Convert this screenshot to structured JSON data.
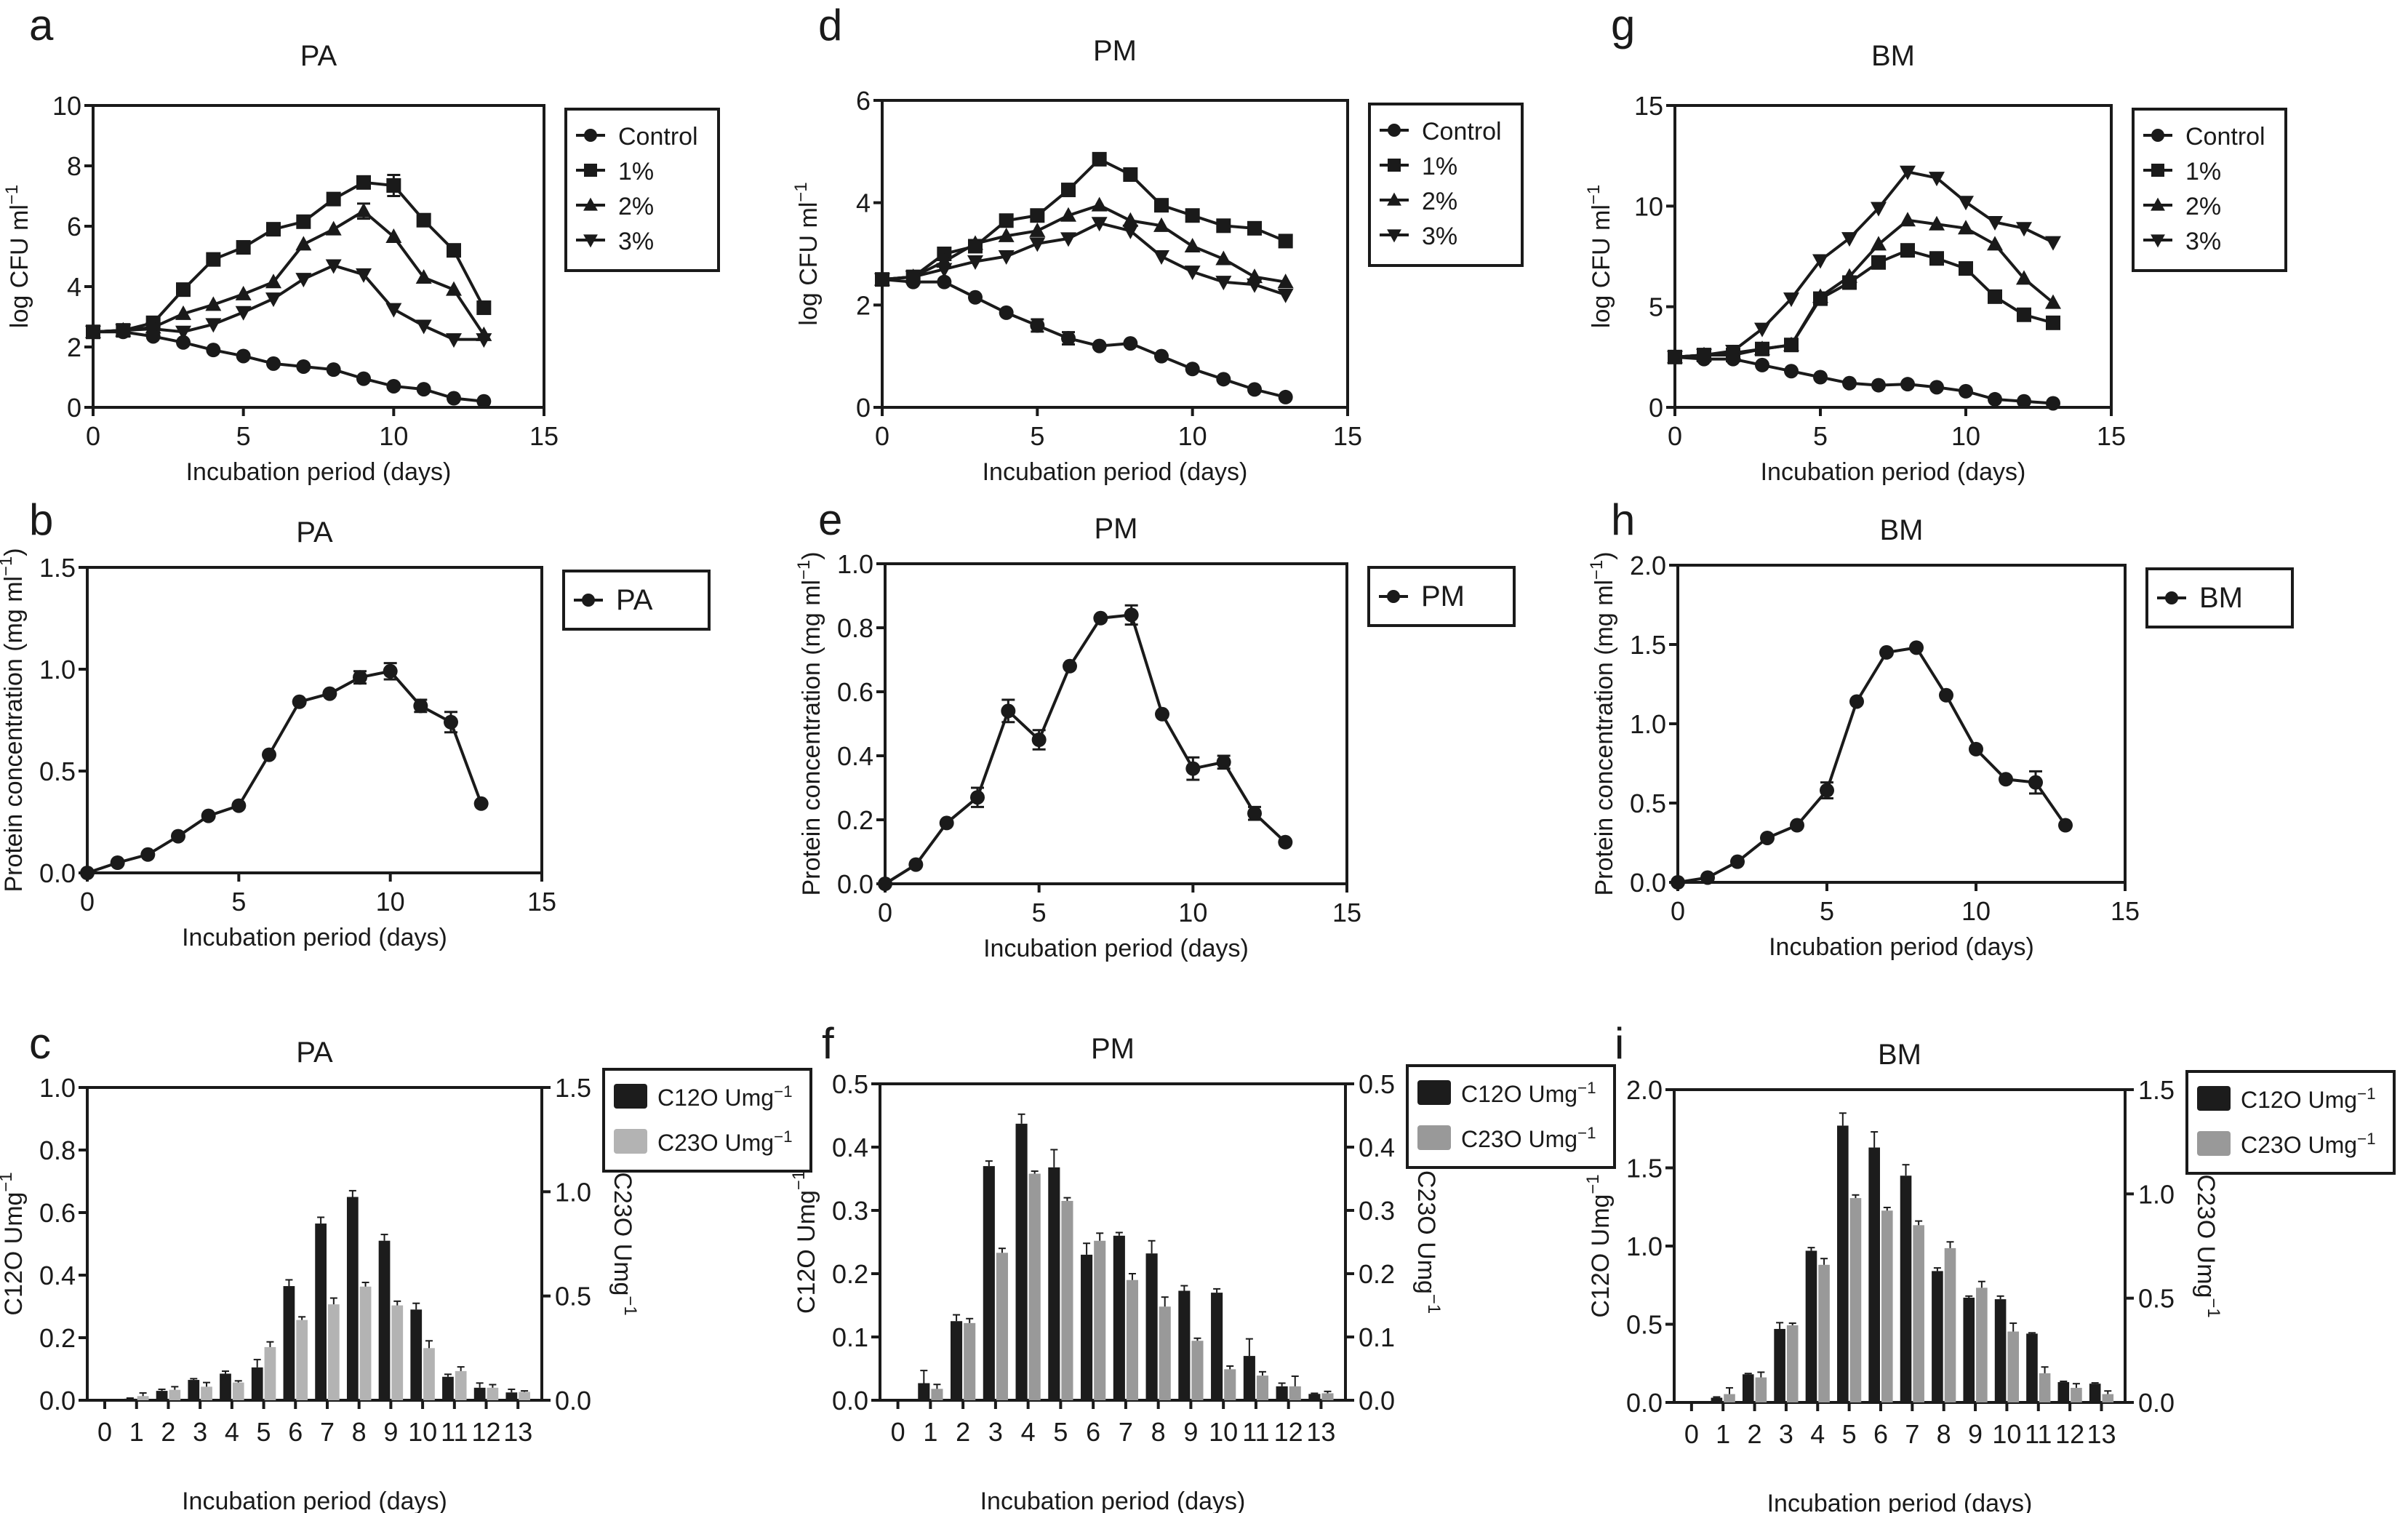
{
  "chart_data": [
    {
      "id": "a",
      "letter": "a",
      "type": "line",
      "title": "PA",
      "xlabel": "Incubation period (days)",
      "ylabel": "log CFU ml",
      "ylabel_sup": "−1",
      "xlim": [
        0,
        15
      ],
      "ylim": [
        0,
        10
      ],
      "xticks": [
        "0",
        "5",
        "10",
        "15"
      ],
      "xtick_values": [
        0,
        5,
        10,
        15
      ],
      "yticks": [
        "0",
        "2",
        "4",
        "6",
        "8",
        "10"
      ],
      "ytick_values": [
        0,
        2,
        4,
        6,
        8,
        10
      ],
      "grid": false,
      "legend": "right",
      "x": [
        0,
        1,
        2,
        3,
        4,
        5,
        6,
        7,
        8,
        9,
        10,
        11,
        12,
        13
      ],
      "series": [
        {
          "name": "Control",
          "marker": "circle",
          "values": [
            2.5,
            2.5,
            2.35,
            2.15,
            1.9,
            1.7,
            1.45,
            1.35,
            1.25,
            0.95,
            0.7,
            0.6,
            0.3,
            0.2
          ]
        },
        {
          "name": "1%",
          "marker": "square",
          "values": [
            2.5,
            2.55,
            2.8,
            3.9,
            4.9,
            5.3,
            5.9,
            6.15,
            6.9,
            7.45,
            7.35,
            6.2,
            5.2,
            3.3
          ]
        },
        {
          "name": "2%",
          "marker": "triangle-up",
          "values": [
            2.5,
            2.55,
            2.65,
            3.1,
            3.4,
            3.75,
            4.15,
            5.4,
            5.9,
            6.5,
            5.65,
            4.3,
            3.9,
            2.4
          ]
        },
        {
          "name": "3%",
          "marker": "triangle-down",
          "values": [
            2.5,
            2.55,
            2.6,
            2.5,
            2.75,
            3.15,
            3.6,
            4.25,
            4.7,
            4.4,
            3.25,
            2.7,
            2.25,
            2.25
          ]
        }
      ],
      "error_bars": [
        {
          "series": "1%",
          "x": 10,
          "err": 0.35
        },
        {
          "series": "2%",
          "x": 9,
          "err": 0.25
        }
      ]
    },
    {
      "id": "b",
      "letter": "b",
      "type": "line",
      "title": "PA",
      "xlabel": "Incubation period (days)",
      "ylabel": "Protein concentration (mg ml",
      "ylabel_sup": "−1",
      "ylabel_suffix": ")",
      "xlim": [
        0,
        15
      ],
      "ylim": [
        0,
        1.5
      ],
      "xticks": [
        "0",
        "5",
        "10",
        "15"
      ],
      "xtick_values": [
        0,
        5,
        10,
        15
      ],
      "yticks": [
        "0.0",
        "0.5",
        "1.0",
        "1.5"
      ],
      "ytick_values": [
        0,
        0.5,
        1.0,
        1.5
      ],
      "grid": false,
      "legend": "right",
      "x": [
        0,
        1,
        2,
        3,
        4,
        5,
        6,
        7,
        8,
        9,
        10,
        11,
        12,
        13
      ],
      "series": [
        {
          "name": "PA",
          "marker": "circle",
          "values": [
            0.0,
            0.05,
            0.09,
            0.18,
            0.28,
            0.33,
            0.58,
            0.84,
            0.88,
            0.96,
            0.99,
            0.82,
            0.74,
            0.34
          ]
        }
      ],
      "error_bars": [
        {
          "series": "PA",
          "x": 9,
          "err": 0.03
        },
        {
          "series": "PA",
          "x": 10,
          "err": 0.04
        },
        {
          "series": "PA",
          "x": 11,
          "err": 0.03
        },
        {
          "series": "PA",
          "x": 12,
          "err": 0.05
        }
      ]
    },
    {
      "id": "c",
      "letter": "c",
      "type": "bar",
      "title": "PA",
      "xlabel": "Incubation period (days)",
      "ylabel": "C12O Umg",
      "ylabel_sup": "−1",
      "ylabel_right": "C23O Umg",
      "ylabel_right_sup": "−1",
      "categories": [
        "0",
        "1",
        "2",
        "3",
        "4",
        "5",
        "6",
        "7",
        "8",
        "9",
        "10",
        "11",
        "12",
        "13"
      ],
      "ylim": [
        0,
        1.0
      ],
      "ylim_right": [
        0,
        1.5
      ],
      "yticks": [
        "0.0",
        "0.2",
        "0.4",
        "0.6",
        "0.8",
        "1.0"
      ],
      "ytick_values": [
        0,
        0.2,
        0.4,
        0.6,
        0.8,
        1.0
      ],
      "yticks_right": [
        "0.0",
        "0.5",
        "1.0",
        "1.5"
      ],
      "ytick_values_right": [
        0,
        0.5,
        1.0,
        1.5
      ],
      "grid": false,
      "legend": "right",
      "series": [
        {
          "name": "C12O Umg",
          "name_sup": "−1",
          "axis": "left",
          "color": "#1c1c1c",
          "values": [
            0.0,
            0.005,
            0.03,
            0.065,
            0.085,
            0.105,
            0.365,
            0.565,
            0.65,
            0.51,
            0.29,
            0.075,
            0.04,
            0.025
          ],
          "errors": [
            0,
            0.002,
            0.005,
            0.004,
            0.008,
            0.025,
            0.02,
            0.02,
            0.02,
            0.02,
            0.02,
            0.008,
            0.015,
            0.01
          ]
        },
        {
          "name": "C23O Umg",
          "name_sup": "−1",
          "axis": "right",
          "color": "#b3b3b3",
          "values": [
            0.0,
            0.02,
            0.05,
            0.065,
            0.085,
            0.255,
            0.385,
            0.46,
            0.545,
            0.455,
            0.25,
            0.14,
            0.06,
            0.04
          ],
          "errors": [
            0,
            0.015,
            0.015,
            0.02,
            0.008,
            0.025,
            0.015,
            0.03,
            0.02,
            0.02,
            0.035,
            0.02,
            0.015,
            0.005
          ]
        }
      ]
    },
    {
      "id": "d",
      "letter": "d",
      "type": "line",
      "title": "PM",
      "xlabel": "Incubation period (days)",
      "ylabel": "log CFU ml",
      "ylabel_sup": "−1",
      "xlim": [
        0,
        15
      ],
      "ylim": [
        0,
        6
      ],
      "xticks": [
        "0",
        "5",
        "10",
        "15"
      ],
      "xtick_values": [
        0,
        5,
        10,
        15
      ],
      "yticks": [
        "0",
        "2",
        "4",
        "6"
      ],
      "ytick_values": [
        0,
        2,
        4,
        6
      ],
      "grid": false,
      "legend": "right",
      "x": [
        0,
        1,
        2,
        3,
        4,
        5,
        6,
        7,
        8,
        9,
        10,
        11,
        12,
        13
      ],
      "series": [
        {
          "name": "Control",
          "marker": "circle",
          "values": [
            2.5,
            2.45,
            2.45,
            2.15,
            1.85,
            1.6,
            1.35,
            1.2,
            1.25,
            1.0,
            0.75,
            0.55,
            0.35,
            0.2
          ]
        },
        {
          "name": "1%",
          "marker": "square",
          "values": [
            2.5,
            2.55,
            3.0,
            3.15,
            3.65,
            3.75,
            4.25,
            4.85,
            4.55,
            3.95,
            3.75,
            3.55,
            3.5,
            3.25
          ]
        },
        {
          "name": "2%",
          "marker": "triangle-up",
          "values": [
            2.5,
            2.55,
            2.85,
            3.2,
            3.35,
            3.45,
            3.75,
            3.95,
            3.65,
            3.55,
            3.15,
            2.9,
            2.55,
            2.45
          ]
        },
        {
          "name": "3%",
          "marker": "triangle-down",
          "values": [
            2.5,
            2.55,
            2.7,
            2.85,
            2.95,
            3.2,
            3.3,
            3.6,
            3.45,
            2.95,
            2.65,
            2.45,
            2.4,
            2.2
          ]
        }
      ],
      "error_bars": [
        {
          "series": "Control",
          "x": 5,
          "err": 0.12
        },
        {
          "series": "Control",
          "x": 6,
          "err": 0.12
        }
      ]
    },
    {
      "id": "e",
      "letter": "e",
      "type": "line",
      "title": "PM",
      "xlabel": "Incubation period (days)",
      "ylabel": "Protein concentration (mg ml",
      "ylabel_sup": "−1",
      "ylabel_suffix": ")",
      "xlim": [
        0,
        15
      ],
      "ylim": [
        0,
        1.0
      ],
      "xticks": [
        "0",
        "5",
        "10",
        "15"
      ],
      "xtick_values": [
        0,
        5,
        10,
        15
      ],
      "yticks": [
        "0.0",
        "0.2",
        "0.4",
        "0.6",
        "0.8",
        "1.0"
      ],
      "ytick_values": [
        0,
        0.2,
        0.4,
        0.6,
        0.8,
        1.0
      ],
      "grid": false,
      "legend": "right",
      "x": [
        0,
        1,
        2,
        3,
        4,
        5,
        6,
        7,
        8,
        9,
        10,
        11,
        12,
        13
      ],
      "series": [
        {
          "name": "PM",
          "marker": "circle",
          "values": [
            0.0,
            0.06,
            0.19,
            0.27,
            0.54,
            0.45,
            0.68,
            0.83,
            0.84,
            0.53,
            0.36,
            0.38,
            0.22,
            0.13
          ]
        }
      ],
      "error_bars": [
        {
          "series": "PM",
          "x": 3,
          "err": 0.03
        },
        {
          "series": "PM",
          "x": 4,
          "err": 0.035
        },
        {
          "series": "PM",
          "x": 5,
          "err": 0.03
        },
        {
          "series": "PM",
          "x": 8,
          "err": 0.03
        },
        {
          "series": "PM",
          "x": 10,
          "err": 0.035
        },
        {
          "series": "PM",
          "x": 11,
          "err": 0.02
        },
        {
          "series": "PM",
          "x": 12,
          "err": 0.02
        }
      ]
    },
    {
      "id": "f",
      "letter": "f",
      "type": "bar",
      "title": "PM",
      "xlabel": "Incubation period (days)",
      "ylabel": "C12O Umg",
      "ylabel_sup": "−1",
      "ylabel_right": "C23O Umg",
      "ylabel_right_sup": "−1",
      "categories": [
        "0",
        "1",
        "2",
        "3",
        "4",
        "5",
        "6",
        "7",
        "8",
        "9",
        "10",
        "11",
        "12",
        "13"
      ],
      "ylim": [
        0,
        0.5
      ],
      "ylim_right": [
        0,
        0.5
      ],
      "yticks": [
        "0.0",
        "0.1",
        "0.2",
        "0.3",
        "0.4",
        "0.5"
      ],
      "ytick_values": [
        0,
        0.1,
        0.2,
        0.3,
        0.4,
        0.5
      ],
      "yticks_right": [
        "0.0",
        "0.1",
        "0.2",
        "0.3",
        "0.4",
        "0.5"
      ],
      "ytick_values_right": [
        0,
        0.1,
        0.2,
        0.3,
        0.4,
        0.5
      ],
      "grid": false,
      "legend": "right",
      "series": [
        {
          "name": "C12O Umg",
          "name_sup": "−1",
          "axis": "left",
          "color": "#1c1c1c",
          "values": [
            0.0,
            0.027,
            0.125,
            0.37,
            0.437,
            0.368,
            0.23,
            0.26,
            0.232,
            0.173,
            0.17,
            0.07,
            0.022,
            0.01
          ],
          "errors": [
            0,
            0.02,
            0.01,
            0.008,
            0.015,
            0.028,
            0.018,
            0.005,
            0.02,
            0.008,
            0.006,
            0.027,
            0.005,
            0.001
          ]
        },
        {
          "name": "C23O Umg",
          "name_sup": "−1",
          "axis": "right",
          "color": "#999999",
          "values": [
            0.0,
            0.018,
            0.122,
            0.233,
            0.358,
            0.315,
            0.252,
            0.19,
            0.148,
            0.094,
            0.049,
            0.039,
            0.022,
            0.011
          ],
          "errors": [
            0,
            0.007,
            0.007,
            0.007,
            0.004,
            0.005,
            0.012,
            0.01,
            0.015,
            0.004,
            0.005,
            0.006,
            0.016,
            0.003
          ]
        }
      ]
    },
    {
      "id": "g",
      "letter": "g",
      "type": "line",
      "title": "BM",
      "xlabel": "Incubation period (days)",
      "ylabel": "log CFU ml",
      "ylabel_sup": "−1",
      "xlim": [
        0,
        15
      ],
      "ylim": [
        0,
        15
      ],
      "xticks": [
        "0",
        "5",
        "10",
        "15"
      ],
      "xtick_values": [
        0,
        5,
        10,
        15
      ],
      "yticks": [
        "0",
        "5",
        "10",
        "15"
      ],
      "ytick_values": [
        0,
        5,
        10,
        15
      ],
      "grid": false,
      "legend": "right",
      "x": [
        0,
        1,
        2,
        3,
        4,
        5,
        6,
        7,
        8,
        9,
        10,
        11,
        12,
        13
      ],
      "series": [
        {
          "name": "Control",
          "marker": "circle",
          "values": [
            2.5,
            2.4,
            2.4,
            2.1,
            1.8,
            1.5,
            1.2,
            1.1,
            1.15,
            1.0,
            0.8,
            0.4,
            0.3,
            0.2
          ]
        },
        {
          "name": "1%",
          "marker": "square",
          "values": [
            2.5,
            2.6,
            2.6,
            2.9,
            3.1,
            5.4,
            6.2,
            7.2,
            7.8,
            7.4,
            6.9,
            5.5,
            4.6,
            4.2
          ]
        },
        {
          "name": "2%",
          "marker": "triangle-up",
          "values": [
            2.5,
            2.6,
            2.7,
            2.9,
            3.1,
            5.5,
            6.5,
            8.1,
            9.3,
            9.1,
            8.9,
            8.1,
            6.4,
            5.2
          ]
        },
        {
          "name": "3%",
          "marker": "triangle-down",
          "values": [
            2.5,
            2.6,
            2.8,
            3.9,
            5.4,
            7.3,
            8.4,
            9.9,
            11.7,
            11.4,
            10.2,
            9.2,
            8.9,
            8.2
          ]
        }
      ],
      "error_bars": []
    },
    {
      "id": "h",
      "letter": "h",
      "type": "line",
      "title": "BM",
      "xlabel": "Incubation period (days)",
      "ylabel": "Protein concentration (mg ml",
      "ylabel_sup": "−1",
      "ylabel_suffix": ")",
      "xlim": [
        0,
        15
      ],
      "ylim": [
        0,
        2.0
      ],
      "xticks": [
        "0",
        "5",
        "10",
        "15"
      ],
      "xtick_values": [
        0,
        5,
        10,
        15
      ],
      "yticks": [
        "0.0",
        "0.5",
        "1.0",
        "1.5",
        "2.0"
      ],
      "ytick_values": [
        0,
        0.5,
        1.0,
        1.5,
        2.0
      ],
      "grid": false,
      "legend": "right",
      "x": [
        0,
        1,
        2,
        3,
        4,
        5,
        6,
        7,
        8,
        9,
        10,
        11,
        12,
        13
      ],
      "series": [
        {
          "name": "BM",
          "marker": "circle",
          "values": [
            0.0,
            0.03,
            0.13,
            0.28,
            0.36,
            0.58,
            1.14,
            1.45,
            1.48,
            1.18,
            0.84,
            0.65,
            0.63,
            0.36
          ]
        }
      ],
      "error_bars": [
        {
          "series": "BM",
          "x": 5,
          "err": 0.05
        },
        {
          "series": "BM",
          "x": 12,
          "err": 0.07
        }
      ]
    },
    {
      "id": "i",
      "letter": "i",
      "type": "bar",
      "title": "BM",
      "xlabel": "Incubation period (days)",
      "ylabel": "C12O Umg",
      "ylabel_sup": "−1",
      "ylabel_right": "C23O Umg",
      "ylabel_right_sup": "−1",
      "categories": [
        "0",
        "1",
        "2",
        "3",
        "4",
        "5",
        "6",
        "7",
        "8",
        "9",
        "10",
        "11",
        "12",
        "13"
      ],
      "ylim": [
        0,
        2.0
      ],
      "ylim_right": [
        0,
        1.5
      ],
      "yticks": [
        "0.0",
        "0.5",
        "1.0",
        "1.5",
        "2.0"
      ],
      "ytick_values": [
        0,
        0.5,
        1.0,
        1.5,
        2.0
      ],
      "yticks_right": [
        "0.0",
        "0.5",
        "1.0",
        "1.5"
      ],
      "ytick_values_right": [
        0,
        0.5,
        1.0,
        1.5
      ],
      "grid": false,
      "legend": "right",
      "series": [
        {
          "name": "C12O Umg",
          "name_sup": "−1",
          "axis": "left",
          "color": "#1c1c1c",
          "values": [
            0.0,
            0.03,
            0.18,
            0.47,
            0.97,
            1.77,
            1.63,
            1.45,
            0.84,
            0.67,
            0.66,
            0.44,
            0.13,
            0.12
          ],
          "errors": [
            0,
            0.005,
            0.005,
            0.04,
            0.02,
            0.08,
            0.1,
            0.07,
            0.02,
            0.01,
            0.02,
            0.005,
            0.005,
            0.005
          ]
        },
        {
          "name": "C23O Umg",
          "name_sup": "−1",
          "axis": "right",
          "color": "#999999",
          "values": [
            0.0,
            0.04,
            0.12,
            0.37,
            0.66,
            0.98,
            0.92,
            0.85,
            0.74,
            0.55,
            0.34,
            0.14,
            0.07,
            0.04
          ],
          "errors": [
            0,
            0.03,
            0.025,
            0.01,
            0.03,
            0.015,
            0.015,
            0.02,
            0.03,
            0.03,
            0.04,
            0.03,
            0.02,
            0.015
          ]
        }
      ]
    }
  ]
}
